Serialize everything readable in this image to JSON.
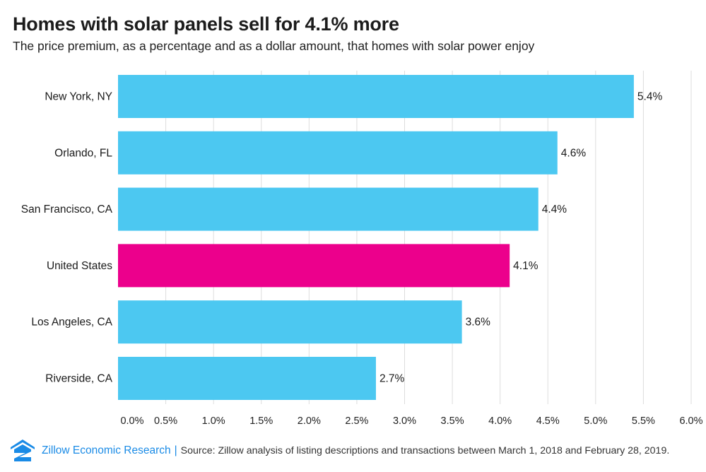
{
  "header": {
    "title": "Homes with solar panels sell for 4.1% more",
    "subtitle": "The price premium, as a percentage and as a dollar amount, that homes with solar power enjoy"
  },
  "chart_data": {
    "type": "bar",
    "orientation": "horizontal",
    "categories": [
      "New York, NY",
      "Orlando, FL",
      "San Francisco, CA",
      "United States",
      "Los Angeles, CA",
      "Riverside, CA"
    ],
    "values": [
      5.4,
      4.6,
      4.4,
      4.1,
      3.6,
      2.7
    ],
    "value_labels": [
      "5.4%",
      "4.6%",
      "4.4%",
      "4.1%",
      "3.6%",
      "2.7%"
    ],
    "highlight": "United States",
    "xlim": [
      0,
      6
    ],
    "x_ticks": [
      0,
      0.5,
      1,
      1.5,
      2,
      2.5,
      3,
      3.5,
      4,
      4.5,
      5,
      5.5,
      6
    ],
    "x_tick_labels": [
      "0.0%",
      "0.5%",
      "1.0%",
      "1.5%",
      "2.0%",
      "2.5%",
      "3.0%",
      "3.5%",
      "4.0%",
      "4.5%",
      "5.0%",
      "5.5%",
      "6.0%"
    ],
    "grid": "vertical",
    "xlabel": "",
    "ylabel": "",
    "colors": {
      "bar": "#4cc8f1",
      "highlight": "#ec008c",
      "grid": "#dddddd"
    }
  },
  "footer": {
    "brand": "Zillow Economic Research",
    "separator": "|",
    "source": "Source: Zillow analysis of listing descriptions and transactions between March 1, 2018 and February 28, 2019.",
    "logo_icon": "zillow-logo-icon",
    "brand_color": "#1a8be6"
  }
}
